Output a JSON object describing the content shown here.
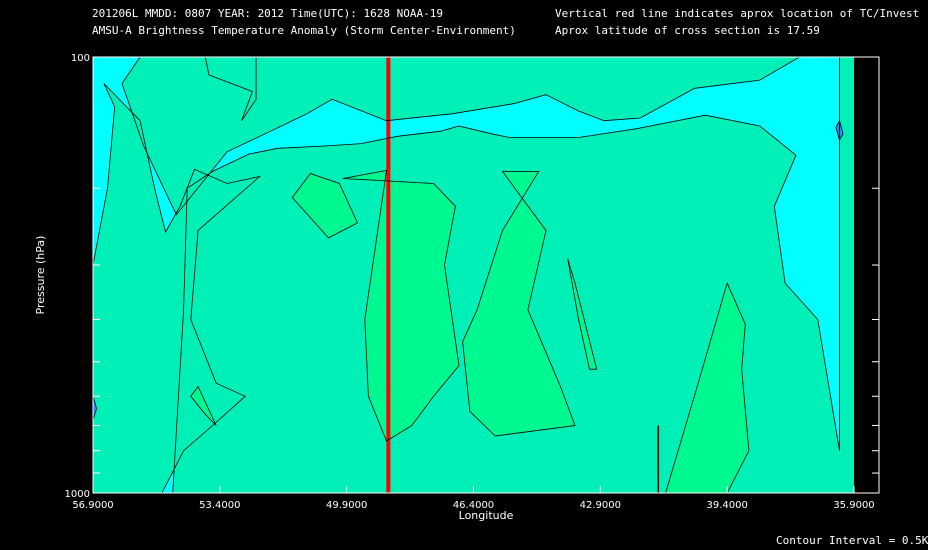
{
  "header": {
    "line1_left": "201206L  MMDD: 0807 YEAR: 2012 Time(UTC): 1628 NOAA-19",
    "line2_left": "AMSU-A Brightness Temperature Anomaly (Storm Center-Environment)",
    "line1_right": "Vertical red line indicates aprox location of TC/Invest",
    "line2_right": "Aprox latitude of cross section is 17.59"
  },
  "footer": {
    "contour_interval": "Contour Interval = 0.5K"
  },
  "colors": {
    "background": "#000000",
    "field": "#00f0b8",
    "cyan": "#00ffff",
    "light_green": "#00f890",
    "blue": "#1e90ff",
    "tc_line": "#ff0000"
  },
  "chart_data": {
    "type": "contour",
    "xlabel": "Longitude",
    "ylabel": "Pressure (hPa)",
    "xlim": [
      56.9,
      35.9
    ],
    "ylim": [
      1000,
      100
    ],
    "y_scale": "log",
    "x_tick_labels": [
      "56.9000",
      "53.4000",
      "49.9000",
      "46.4000",
      "42.9000",
      "39.4000",
      "35.9000"
    ],
    "x_tick_values": [
      56.9,
      53.4,
      49.9,
      46.4,
      42.9,
      39.4,
      35.9
    ],
    "y_tick_labels": [
      "100",
      "1000"
    ],
    "y_tick_values": [
      100,
      1000
    ],
    "tc_longitude": 48.75,
    "contour_interval_K": 0.5,
    "regions": [
      {
        "name": "cyan-band",
        "color": "cyan",
        "pts": [
          [
            56.9,
            100
          ],
          [
            55.6,
            100
          ],
          [
            56.1,
            115
          ],
          [
            55.5,
            160
          ],
          [
            54.6,
            230
          ],
          [
            53.2,
            165
          ],
          [
            52.0,
            148
          ],
          [
            51.0,
            135
          ],
          [
            50.3,
            125
          ],
          [
            48.8,
            140
          ],
          [
            47.0,
            135
          ],
          [
            45.3,
            128
          ],
          [
            44.4,
            122
          ],
          [
            43.5,
            133
          ],
          [
            42.8,
            140
          ],
          [
            41.8,
            138
          ],
          [
            40.3,
            118
          ],
          [
            38.5,
            113
          ],
          [
            37.4,
            100
          ],
          [
            36.3,
            100
          ],
          [
            36.3,
            800
          ],
          [
            36.9,
            400
          ],
          [
            37.8,
            330
          ],
          [
            38.1,
            220
          ],
          [
            37.5,
            168
          ],
          [
            38.5,
            144
          ],
          [
            40.0,
            136
          ],
          [
            41.9,
            146
          ],
          [
            43.5,
            153
          ],
          [
            45.4,
            153
          ],
          [
            45.9,
            150
          ],
          [
            46.8,
            144
          ],
          [
            47.3,
            148
          ],
          [
            48.5,
            152
          ],
          [
            49.5,
            158
          ],
          [
            50.5,
            160
          ],
          [
            51.8,
            162
          ],
          [
            52.6,
            167
          ],
          [
            53.6,
            183
          ],
          [
            54.3,
            200
          ],
          [
            54.4,
            380
          ],
          [
            54.7,
            1000
          ],
          [
            56.9,
            1000
          ]
        ]
      },
      {
        "name": "field-left",
        "color": "field",
        "pts": [
          [
            55.6,
            140
          ],
          [
            55.2,
            200
          ],
          [
            54.9,
            252
          ],
          [
            54.5,
            220
          ],
          [
            54.1,
            181
          ],
          [
            53.2,
            195
          ],
          [
            52.3,
            188
          ],
          [
            54.0,
            250
          ],
          [
            54.2,
            400
          ],
          [
            53.5,
            560
          ],
          [
            52.7,
            600
          ],
          [
            53.6,
            700
          ],
          [
            54.4,
            800
          ],
          [
            55.0,
            1000
          ],
          [
            56.9,
            1000
          ],
          [
            56.9,
            300
          ],
          [
            56.5,
            200
          ],
          [
            56.3,
            130
          ],
          [
            56.6,
            115
          ]
        ]
      },
      {
        "name": "field-upper",
        "color": "field",
        "pts": [
          [
            53.7,
            110
          ],
          [
            53.8,
            100
          ],
          [
            52.4,
            100
          ],
          [
            52.4,
            125
          ],
          [
            52.8,
            140
          ],
          [
            52.5,
            120
          ]
        ]
      },
      {
        "name": "green-1",
        "color": "light_green",
        "pts": [
          [
            48.8,
            182
          ],
          [
            50.0,
            190
          ],
          [
            47.5,
            195
          ],
          [
            46.9,
            220
          ],
          [
            47.2,
            300
          ],
          [
            46.8,
            510
          ],
          [
            47.5,
            600
          ],
          [
            48.1,
            700
          ],
          [
            48.8,
            760
          ],
          [
            49.3,
            600
          ],
          [
            49.4,
            400
          ]
        ]
      },
      {
        "name": "green-2",
        "color": "light_green",
        "pts": [
          [
            44.6,
            183
          ],
          [
            45.6,
            183
          ],
          [
            44.4,
            250
          ],
          [
            44.9,
            380
          ],
          [
            44.0,
            570
          ],
          [
            43.6,
            700
          ],
          [
            45.8,
            740
          ],
          [
            46.5,
            650
          ],
          [
            46.7,
            450
          ],
          [
            46.3,
            380
          ],
          [
            45.6,
            250
          ]
        ]
      },
      {
        "name": "green-3",
        "color": "light_green",
        "pts": [
          [
            43.8,
            290
          ],
          [
            43.5,
            400
          ],
          [
            43.2,
            520
          ],
          [
            43.0,
            520
          ],
          [
            43.6,
            330
          ]
        ]
      },
      {
        "name": "green-4",
        "color": "light_green",
        "pts": [
          [
            39.4,
            330
          ],
          [
            40.2,
            560
          ],
          [
            41.1,
            1000
          ],
          [
            39.4,
            1000
          ],
          [
            38.8,
            800
          ],
          [
            39.0,
            520
          ],
          [
            38.9,
            410
          ]
        ]
      },
      {
        "name": "green-5",
        "color": "light_green",
        "pts": [
          [
            50.1,
            195
          ],
          [
            49.6,
            240
          ],
          [
            50.4,
            260
          ],
          [
            51.4,
            210
          ],
          [
            50.9,
            185
          ]
        ]
      },
      {
        "name": "green-6",
        "color": "light_green",
        "pts": [
          [
            54.2,
            600
          ],
          [
            53.8,
            660
          ],
          [
            53.5,
            700
          ],
          [
            54.0,
            570
          ]
        ]
      },
      {
        "name": "blue-1",
        "color": "blue",
        "pts": [
          [
            36.3,
            140
          ],
          [
            36.2,
            150
          ],
          [
            36.3,
            155
          ],
          [
            36.4,
            145
          ]
        ]
      },
      {
        "name": "blue-2",
        "color": "blue",
        "pts": [
          [
            56.9,
            600
          ],
          [
            56.8,
            640
          ],
          [
            56.9,
            680
          ]
        ]
      }
    ],
    "annotations": [
      "Contour Interval = 0.5K"
    ]
  }
}
